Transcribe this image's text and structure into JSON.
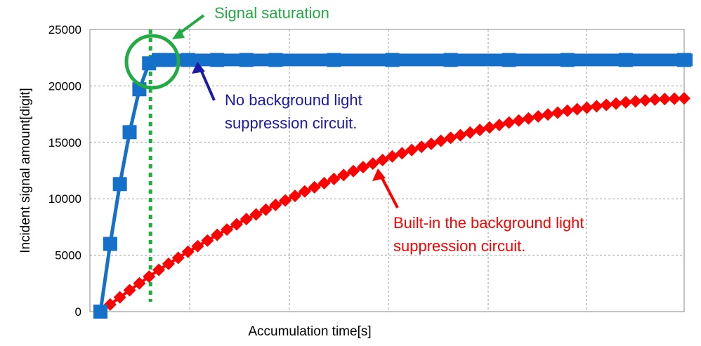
{
  "chart_data": {
    "type": "line",
    "title": "",
    "xlabel": "Accumulation time[s]",
    "ylabel": "Incident signal amount[digit]",
    "ylim": [
      0,
      25000
    ],
    "yticks": [
      0,
      5000,
      10000,
      15000,
      20000,
      25000
    ],
    "xlim": [
      0,
      1
    ],
    "x_tick_labels_shown": false,
    "grid": true,
    "legend": "none",
    "series": [
      {
        "color": "#1470c8",
        "marker": "square",
        "x": [
          0.0,
          0.0167,
          0.0333,
          0.05,
          0.0667,
          0.0833,
          0.1,
          0.1167,
          0.15,
          0.2,
          0.25,
          0.3,
          0.4,
          0.5,
          0.6,
          0.7,
          0.8,
          0.9,
          1.0
        ],
        "y": [
          0,
          6000,
          11300,
          15900,
          19700,
          22000,
          22300,
          22300,
          22300,
          22300,
          22300,
          22300,
          22300,
          22300,
          22300,
          22300,
          22300,
          22300,
          22300
        ]
      },
      {
        "color": "#ff0000",
        "marker": "diamond",
        "x": [
          0.0,
          0.05,
          0.1,
          0.15,
          0.2,
          0.25,
          0.3,
          0.35,
          0.4,
          0.45,
          0.5,
          0.55,
          0.6,
          0.65,
          0.7,
          0.75,
          0.8,
          0.85,
          0.9,
          0.95,
          1.0
        ],
        "y": [
          0,
          1900,
          3700,
          5300,
          6800,
          8200,
          9450,
          10650,
          11750,
          12800,
          13750,
          14600,
          15400,
          16100,
          16750,
          17300,
          17800,
          18200,
          18550,
          18800,
          18900
        ]
      }
    ],
    "vline": {
      "x": 0.0833,
      "color": "#22aa44"
    },
    "annotations": [
      {
        "id": "saturation",
        "text": "Signal saturation",
        "color": "#22aa44"
      },
      {
        "id": "no_bg",
        "lines": [
          "No background light",
          "suppression circuit."
        ],
        "color": "#1a1aaa"
      },
      {
        "id": "with_bg",
        "lines": [
          "Built-in the background light",
          "suppression circuit."
        ],
        "color": "#ff0000"
      }
    ]
  }
}
